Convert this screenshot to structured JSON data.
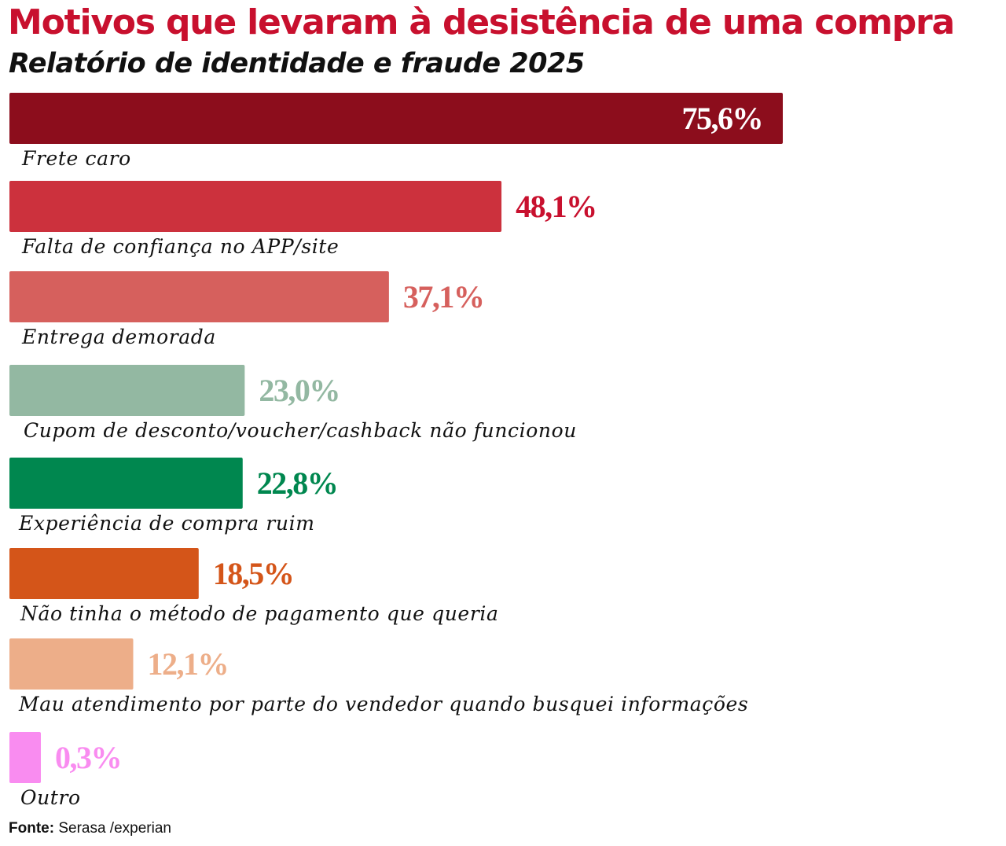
{
  "header": {
    "title": "Motivos que levaram à desistência de uma compra",
    "subtitle": "Relatório de identidade e fraude 2025"
  },
  "footer": {
    "source_label": "Fonte:",
    "source_text": "Serasa /experian"
  },
  "chart_data": {
    "type": "bar",
    "orientation": "horizontal",
    "title": "Motivos que levaram à desistência de uma compra",
    "subtitle": "Relatório de identidade e fraude 2025",
    "xlim": [
      0,
      100
    ],
    "grid": false,
    "categories": [
      "Frete caro",
      "Falta de confiança no APP/site",
      "Entrega demorada",
      "Cupom de desconto/voucher/cashback não funcionou",
      "Experiência de compra ruim",
      "Não tinha o método de pagamento que queria",
      "Mau atendimento por parte do vendedor quando busquei informações",
      "Outro"
    ],
    "values": [
      75.6,
      48.1,
      37.1,
      23.0,
      22.8,
      18.5,
      12.1,
      0.3
    ],
    "value_labels": [
      "75,6%",
      "48,1%",
      "37,1%",
      "23,0%",
      "22,8%",
      "18,5%",
      "12,1%",
      "0,3%"
    ],
    "colors": [
      "#8c0d1c",
      "#cc313d",
      "#d6605d",
      "#93b8a2",
      "#00874f",
      "#d45519",
      "#edae89",
      "#f98cf0"
    ],
    "value_label_colors": [
      "#ffffff",
      "#c8102e",
      "#d6605d",
      "#93b8a2",
      "#00874f",
      "#d45519",
      "#edae89",
      "#f98cf0"
    ],
    "value_label_inside": [
      true,
      false,
      false,
      false,
      false,
      false,
      false,
      false
    ]
  }
}
